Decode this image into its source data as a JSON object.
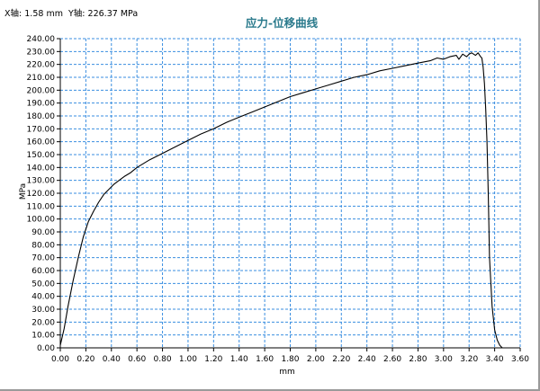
{
  "readout": {
    "x_label": "X轴:",
    "x_value": "1.58",
    "x_unit": "mm",
    "y_label": "Y轴:",
    "y_value": "226.37",
    "y_unit": "MPa"
  },
  "chart_data": {
    "type": "line",
    "title": "应力-位移曲线",
    "xlabel": "mm",
    "ylabel": "MPa",
    "xlim": [
      0,
      3.6
    ],
    "ylim": [
      0,
      240
    ],
    "x_tick_step": 0.2,
    "y_tick_step": 10,
    "x_tick_labels": [
      "0.00",
      "0.20",
      "0.40",
      "0.60",
      "0.80",
      "1.00",
      "1.20",
      "1.40",
      "1.60",
      "1.80",
      "2.00",
      "2.20",
      "2.40",
      "2.60",
      "2.80",
      "3.00",
      "3.20",
      "3.40",
      "3.60"
    ],
    "y_tick_labels": [
      "0.00",
      "10.00",
      "20.00",
      "30.00",
      "40.00",
      "50.00",
      "60.00",
      "70.00",
      "80.00",
      "90.00",
      "100.00",
      "110.00",
      "120.00",
      "130.00",
      "140.00",
      "150.00",
      "160.00",
      "170.00",
      "180.00",
      "190.00",
      "200.00",
      "210.00",
      "220.00",
      "230.00",
      "240.00"
    ],
    "grid": true,
    "grid_style": "dashed",
    "colors": {
      "grid": "#3a8ee0",
      "axis": "#000000",
      "line": "#000000",
      "title": "#2a7a8c"
    },
    "series": [
      {
        "x": [
          0.0,
          0.03,
          0.06,
          0.1,
          0.14,
          0.18,
          0.22,
          0.26,
          0.3,
          0.34,
          0.38,
          0.42,
          0.46,
          0.5,
          0.55,
          0.6,
          0.7,
          0.8,
          0.9,
          1.0,
          1.1,
          1.2,
          1.3,
          1.4,
          1.5,
          1.6,
          1.7,
          1.8,
          1.9,
          2.0,
          2.1,
          2.2,
          2.3,
          2.4,
          2.5,
          2.6,
          2.7,
          2.8,
          2.9,
          2.95,
          3.0,
          3.05,
          3.1,
          3.12,
          3.15,
          3.18,
          3.2,
          3.22,
          3.25,
          3.27,
          3.29,
          3.3,
          3.31,
          3.32,
          3.33,
          3.34,
          3.35,
          3.36,
          3.38,
          3.4,
          3.42,
          3.44,
          3.46
        ],
        "y": [
          2,
          15,
          32,
          52,
          70,
          86,
          98,
          106,
          113,
          119,
          123,
          127,
          130,
          133,
          136,
          140,
          146,
          151,
          156,
          161,
          166,
          170,
          175,
          179,
          183,
          187,
          191,
          195,
          198,
          201,
          204,
          207,
          210,
          212,
          215,
          217,
          219,
          221,
          223,
          225,
          224,
          226,
          227,
          224,
          228,
          226,
          228,
          229,
          227,
          229,
          226,
          225,
          218,
          205,
          185,
          160,
          120,
          70,
          32,
          14,
          6,
          2,
          0
        ]
      }
    ]
  }
}
